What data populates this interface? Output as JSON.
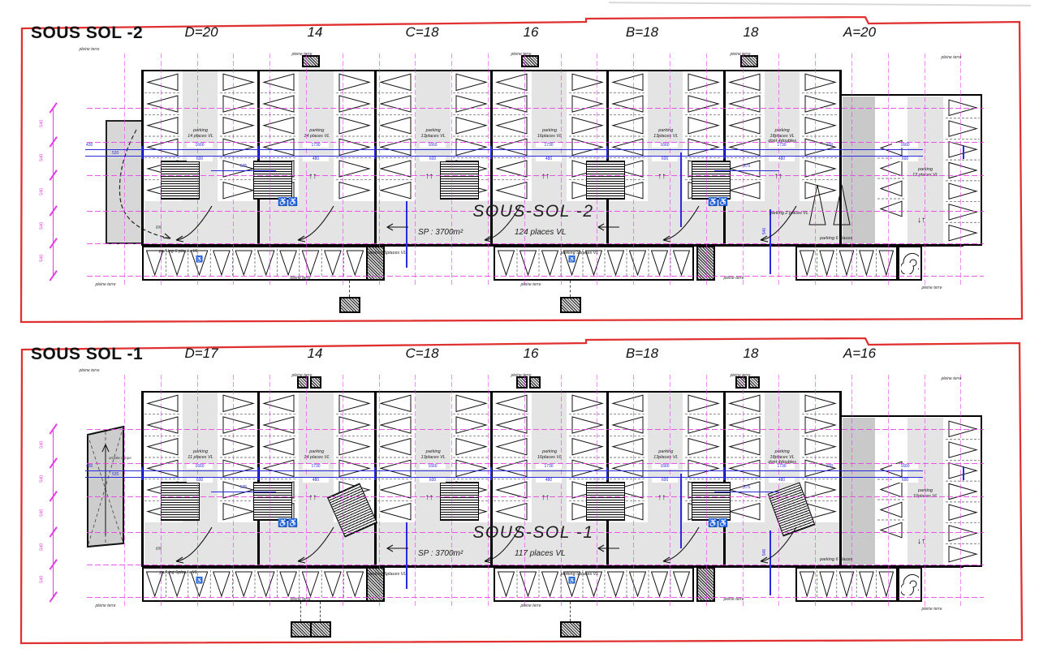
{
  "shared": {
    "pleine_terre": "pleine terre",
    "grid_dim": "540",
    "aisle_dim": "575",
    "slope": "6%",
    "ramp_note": "arrivée rampe",
    "edge_dims": [
      "430",
      "520",
      "230",
      "546"
    ],
    "colors": {
      "sheet_border": "#e03131",
      "grid": "#e83ce8",
      "dims": "#2a2ae0",
      "wall": "#000000",
      "aisle_fill": "#e4e4e4",
      "ramp_fill": "#c9c9c9",
      "accessible": "#1565d8"
    }
  },
  "panels": [
    {
      "title": "SOUS SOL -2",
      "column_labels": [
        "D=20",
        "14",
        "C=18",
        "16",
        "B=18",
        "18",
        "A=20"
      ],
      "central_title": "SOUS-SOL -2",
      "central_sp": "SP : 3700m²",
      "central_places": "124 places VL",
      "module_labels": [
        "parking\n14 places VL",
        "parking\n14 places VL",
        "parking\n13places VL",
        "parking\n16places VL",
        "parking\n13places VL",
        "parking\n18places VL\ndont 4doubles"
      ],
      "wing_label": "parking\n12 places VL",
      "lane_labels": [
        "parking 6 places VL",
        "parking 5places VL",
        "parking 5places VL",
        "parking 6 places",
        "parking 2 places VL"
      ],
      "dims_top": [
        "1660",
        "1730",
        "1660",
        "1730",
        "1660",
        "1730",
        "1660"
      ],
      "dims_bot": [
        "600",
        "480",
        "600",
        "480",
        "600",
        "480",
        "600"
      ]
    },
    {
      "title": "SOUS SOL -1",
      "column_labels": [
        "D=17",
        "14",
        "C=18",
        "16",
        "B=18",
        "18",
        "A=16"
      ],
      "central_title": "SOUS-SOL -1",
      "central_sp": "SP : 3700m²",
      "central_places": "117 places VL",
      "module_labels": [
        "parking\n11 places VL",
        "parking\n14 places VL",
        "parking\n13places VL",
        "parking\n16places VL",
        "parking\n13places VL",
        "parking\n18places VL\ndont 4doubles"
      ],
      "wing_label": "parking\n10places VL",
      "lane_labels": [
        "parking 6places VL",
        "parking 5places VL",
        "parking 5places VL",
        "parking 6 places"
      ],
      "dims_top": [
        "1660",
        "1730",
        "1660",
        "1730",
        "1660",
        "1730",
        "1660"
      ],
      "dims_bot": [
        "600",
        "480",
        "600",
        "480",
        "600",
        "480",
        "600"
      ]
    }
  ]
}
